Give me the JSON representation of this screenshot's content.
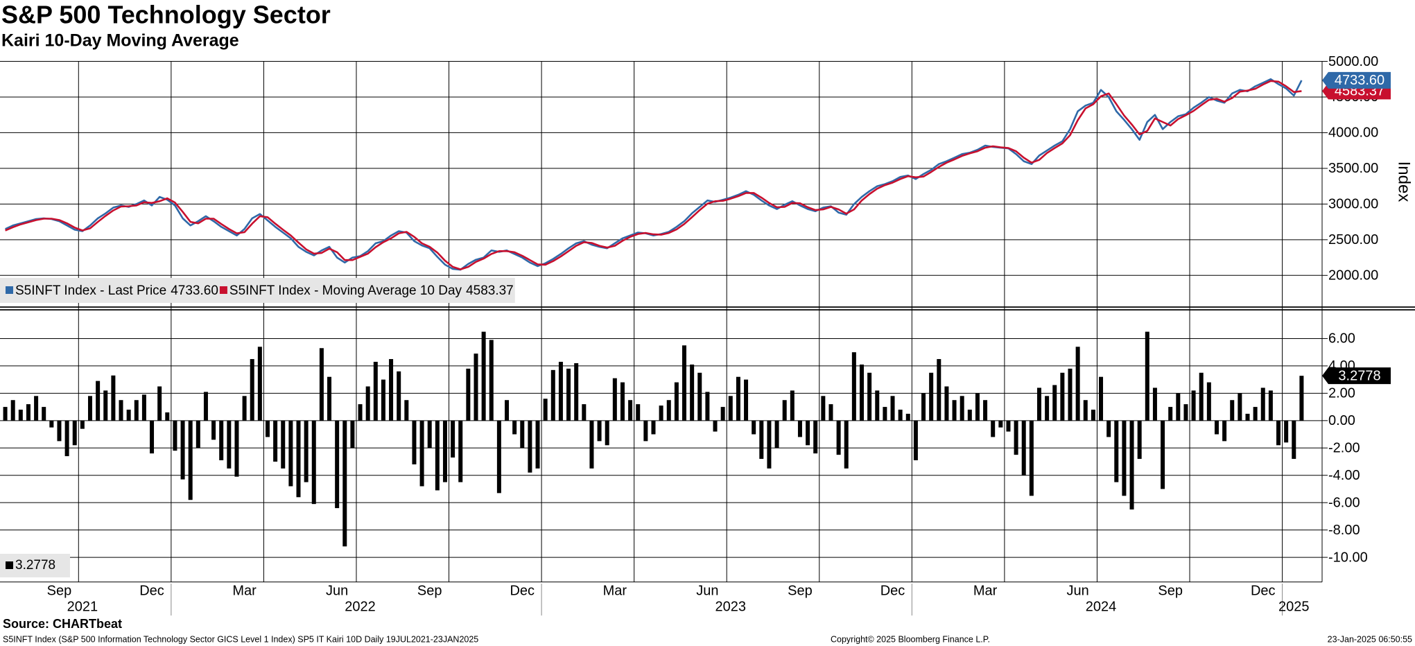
{
  "header": {
    "title": "S&P 500 Technology Sector",
    "subtitle": "Kairi 10-Day Moving Average"
  },
  "footer": {
    "source": "Source: CHARTbeat",
    "description": "S5INFT Index (S&P 500 Information Technology Sector GICS Level 1 Index) SP5 IT Kairi 10D  Daily 19JUL2021-23JAN2025",
    "copyright": "Copyright© 2025 Bloomberg Finance L.P.",
    "timestamp": "23-Jan-2025 06:50:55"
  },
  "x_axis": {
    "categories": [
      null,
      null,
      null,
      null,
      null,
      null,
      null,
      "Sep",
      null,
      null,
      null,
      null,
      null,
      null,
      null,
      null,
      null,
      null,
      null,
      "Dec",
      null,
      null,
      null,
      null,
      null,
      null,
      null,
      null,
      null,
      null,
      null,
      "Mar",
      null,
      null,
      null,
      null,
      null,
      null,
      null,
      null,
      null,
      null,
      null,
      "Jun",
      null,
      null,
      null,
      null,
      null,
      null,
      null,
      null,
      null,
      null,
      null,
      "Sep",
      null,
      null,
      null,
      null,
      null,
      null,
      null,
      null,
      null,
      null,
      null,
      "Dec",
      null,
      null,
      null,
      null,
      null,
      null,
      null,
      null,
      null,
      null,
      null,
      "Mar",
      null,
      null,
      null,
      null,
      null,
      null,
      null,
      null,
      null,
      null,
      null,
      "Jun",
      null,
      null,
      null,
      null,
      null,
      null,
      null,
      null,
      null,
      null,
      null,
      "Sep",
      null,
      null,
      null,
      null,
      null,
      null,
      null,
      null,
      null,
      null,
      null,
      "Dec",
      null,
      null,
      null,
      null,
      null,
      null,
      null,
      null,
      null,
      null,
      null,
      "Mar",
      null,
      null,
      null,
      null,
      null,
      null,
      null,
      null,
      null,
      null,
      null,
      "Jun",
      null,
      null,
      null,
      null,
      null,
      null,
      null,
      null,
      null,
      null,
      null,
      "Sep",
      null,
      null,
      null,
      null,
      null,
      null,
      null,
      null,
      null,
      null,
      null,
      "Dec",
      null,
      null,
      null,
      null,
      null
    ],
    "years": [
      null,
      null,
      null,
      null,
      null,
      null,
      null,
      null,
      null,
      null,
      "2021",
      null,
      null,
      null,
      null,
      null,
      null,
      null,
      null,
      null,
      null,
      null,
      null,
      null,
      null,
      null,
      null,
      null,
      null,
      null,
      null,
      null,
      null,
      null,
      null,
      null,
      null,
      null,
      null,
      null,
      null,
      null,
      null,
      null,
      null,
      null,
      "2022",
      null,
      null,
      null,
      null,
      null,
      null,
      null,
      null,
      null,
      null,
      null,
      null,
      null,
      null,
      null,
      null,
      null,
      null,
      null,
      null,
      null,
      null,
      null,
      null,
      null,
      null,
      null,
      null,
      null,
      null,
      null,
      null,
      null,
      null,
      null,
      null,
      null,
      null,
      null,
      null,
      null,
      null,
      null,
      null,
      null,
      null,
      null,
      "2023",
      null,
      null,
      null,
      null,
      null,
      null,
      null,
      null,
      null,
      null,
      null,
      null,
      null,
      null,
      null,
      null,
      null,
      null,
      null,
      null,
      null,
      null,
      null,
      null,
      null,
      null,
      null,
      null,
      null,
      null,
      null,
      null,
      null,
      null,
      null,
      null,
      null,
      null,
      null,
      null,
      null,
      null,
      null,
      null,
      null,
      null,
      null,
      "2024",
      null,
      null,
      null,
      null,
      null,
      null,
      null,
      null,
      null,
      null,
      null,
      null,
      null,
      null,
      null,
      null,
      null,
      null,
      null,
      null,
      null,
      null,
      null,
      null,
      "2025",
      null
    ]
  },
  "chart_data": [
    {
      "type": "line",
      "y_label": "Index",
      "grid": true,
      "ylim": [
        1560,
        5000
      ],
      "yticks": [
        {
          "value": 2000,
          "label": "2000.00"
        },
        {
          "value": 2500,
          "label": "2500.00"
        },
        {
          "value": 3000,
          "label": "3000.00"
        },
        {
          "value": 3500,
          "label": "3500.00"
        },
        {
          "value": 4000,
          "label": "4000.00"
        },
        {
          "value": 4500,
          "label": "4500.00"
        },
        {
          "value": 5000,
          "label": "5000.00"
        }
      ],
      "series": [
        {
          "name": "S5INFT Index - Last Price",
          "color": "#2f69a8",
          "last_value_label": "4733.60",
          "values": [
            2650,
            2700,
            2730,
            2760,
            2790,
            2800,
            2790,
            2760,
            2700,
            2640,
            2620,
            2700,
            2800,
            2870,
            2950,
            2980,
            2960,
            3000,
            3050,
            2980,
            3100,
            3060,
            2980,
            2800,
            2700,
            2760,
            2830,
            2760,
            2680,
            2620,
            2560,
            2650,
            2800,
            2860,
            2770,
            2680,
            2600,
            2520,
            2400,
            2330,
            2280,
            2350,
            2400,
            2250,
            2180,
            2250,
            2270,
            2340,
            2450,
            2480,
            2560,
            2620,
            2600,
            2480,
            2420,
            2380,
            2260,
            2150,
            2090,
            2080,
            2160,
            2220,
            2250,
            2350,
            2330,
            2350,
            2300,
            2250,
            2180,
            2130,
            2170,
            2230,
            2300,
            2380,
            2450,
            2480,
            2430,
            2400,
            2380,
            2450,
            2520,
            2560,
            2600,
            2590,
            2560,
            2580,
            2610,
            2680,
            2760,
            2870,
            2960,
            3050,
            3030,
            3060,
            3090,
            3130,
            3180,
            3130,
            3050,
            2980,
            2930,
            2990,
            3040,
            2980,
            2930,
            2900,
            2950,
            2970,
            2880,
            2850,
            3000,
            3100,
            3180,
            3250,
            3280,
            3320,
            3380,
            3400,
            3350,
            3420,
            3480,
            3560,
            3600,
            3650,
            3700,
            3720,
            3760,
            3820,
            3800,
            3790,
            3780,
            3700,
            3600,
            3560,
            3680,
            3750,
            3820,
            3880,
            4050,
            4300,
            4380,
            4420,
            4600,
            4500,
            4300,
            4180,
            4050,
            3900,
            4150,
            4250,
            4050,
            4150,
            4230,
            4260,
            4350,
            4420,
            4500,
            4450,
            4420,
            4550,
            4600,
            4580,
            4650,
            4700,
            4750,
            4680,
            4620,
            4520,
            4733.6
          ]
        },
        {
          "name": "S5INFT Index - Moving Average 10 Day",
          "color": "#c8102e",
          "last_value_label": "4583.37",
          "values": [
            2630,
            2675,
            2715,
            2745,
            2775,
            2795,
            2795,
            2775,
            2730,
            2670,
            2630,
            2660,
            2750,
            2835,
            2910,
            2965,
            2970,
            2980,
            3025,
            3015,
            3040,
            3080,
            3020,
            2890,
            2750,
            2730,
            2795,
            2795,
            2720,
            2650,
            2590,
            2605,
            2725,
            2830,
            2815,
            2725,
            2640,
            2560,
            2460,
            2365,
            2305,
            2315,
            2375,
            2325,
            2215,
            2215,
            2260,
            2305,
            2395,
            2465,
            2520,
            2590,
            2610,
            2540,
            2450,
            2400,
            2320,
            2205,
            2120,
            2085,
            2120,
            2190,
            2235,
            2300,
            2340,
            2340,
            2325,
            2275,
            2215,
            2155,
            2150,
            2200,
            2265,
            2340,
            2415,
            2465,
            2455,
            2415,
            2390,
            2415,
            2485,
            2540,
            2580,
            2595,
            2575,
            2570,
            2595,
            2645,
            2720,
            2815,
            2915,
            3005,
            3040,
            3045,
            3075,
            3110,
            3155,
            3155,
            3090,
            3015,
            2955,
            2960,
            3015,
            3010,
            2955,
            2915,
            2925,
            2960,
            2925,
            2865,
            2925,
            3050,
            3140,
            3215,
            3265,
            3300,
            3350,
            3390,
            3375,
            3385,
            3450,
            3520,
            3580,
            3625,
            3675,
            3710,
            3740,
            3790,
            3810,
            3795,
            3785,
            3740,
            3650,
            3580,
            3620,
            3715,
            3785,
            3850,
            3965,
            4175,
            4340,
            4400,
            4510,
            4550,
            4400,
            4240,
            4115,
            3975,
            4025,
            4200,
            4150,
            4100,
            4190,
            4245,
            4305,
            4385,
            4460,
            4475,
            4435,
            4485,
            4575,
            4590,
            4615,
            4675,
            4725,
            4715,
            4650,
            4570,
            4583.37
          ]
        }
      ]
    },
    {
      "type": "bar",
      "grid": true,
      "color": "#000000",
      "last_value_label": "3.2778",
      "ylim": [
        -11.8,
        8
      ],
      "yticks": [
        {
          "value": -10,
          "label": "-10.00"
        },
        {
          "value": -8,
          "label": "-8.00"
        },
        {
          "value": -6,
          "label": "-6.00"
        },
        {
          "value": -4,
          "label": "-4.00"
        },
        {
          "value": -2,
          "label": "-2.00"
        },
        {
          "value": 0,
          "label": "0.00"
        },
        {
          "value": 2,
          "label": "2.00"
        },
        {
          "value": 4,
          "label": "4.00"
        },
        {
          "value": 6,
          "label": "6.00"
        }
      ],
      "values": [
        1.0,
        1.5,
        0.8,
        1.2,
        1.8,
        1.0,
        -0.5,
        -1.5,
        -2.6,
        -1.8,
        -0.6,
        1.8,
        2.9,
        2.2,
        3.3,
        1.5,
        0.8,
        1.5,
        1.9,
        -2.4,
        2.5,
        0.6,
        -2.2,
        -4.3,
        -5.8,
        -2.0,
        2.1,
        -1.4,
        -2.9,
        -3.5,
        -4.1,
        1.8,
        4.5,
        5.4,
        -1.2,
        -3.0,
        -3.5,
        -4.8,
        -5.6,
        -4.5,
        -6.1,
        5.3,
        3.2,
        -6.4,
        -9.2,
        -2.0,
        1.2,
        2.5,
        4.3,
        3.0,
        4.5,
        3.6,
        1.5,
        -3.2,
        -4.8,
        -2.0,
        -5.1,
        -4.5,
        -2.7,
        -4.5,
        3.8,
        4.9,
        6.5,
        5.9,
        -5.3,
        1.5,
        -1.0,
        -2.0,
        -3.8,
        -3.5,
        1.6,
        3.7,
        4.3,
        3.8,
        4.2,
        1.2,
        -3.5,
        -1.5,
        -1.8,
        3.1,
        2.8,
        1.5,
        1.2,
        -1.5,
        -1.0,
        1.1,
        1.5,
        2.8,
        5.5,
        4.1,
        3.5,
        2.1,
        -0.8,
        1.0,
        1.8,
        3.2,
        3.0,
        -1.0,
        -2.8,
        -3.5,
        -2.0,
        1.5,
        2.2,
        -1.2,
        -1.8,
        -2.4,
        1.8,
        1.2,
        -2.5,
        -3.5,
        5.0,
        4.1,
        3.5,
        2.2,
        1.0,
        1.8,
        0.8,
        0.5,
        -2.9,
        2.0,
        3.5,
        4.5,
        2.5,
        1.5,
        1.8,
        0.8,
        2.0,
        1.5,
        -1.2,
        -0.5,
        -0.8,
        -2.5,
        -4.0,
        -5.5,
        2.4,
        1.8,
        2.6,
        3.5,
        3.8,
        5.4,
        1.5,
        0.8,
        3.2,
        -1.2,
        -4.5,
        -5.5,
        -6.5,
        -2.8,
        6.5,
        2.4,
        -5.0,
        1.0,
        2.0,
        1.2,
        2.2,
        3.5,
        2.8,
        -1.0,
        -1.5,
        1.5,
        2.0,
        0.5,
        1.0,
        2.4,
        2.2,
        -1.8,
        -1.6,
        -2.8,
        3.2778
      ]
    }
  ]
}
